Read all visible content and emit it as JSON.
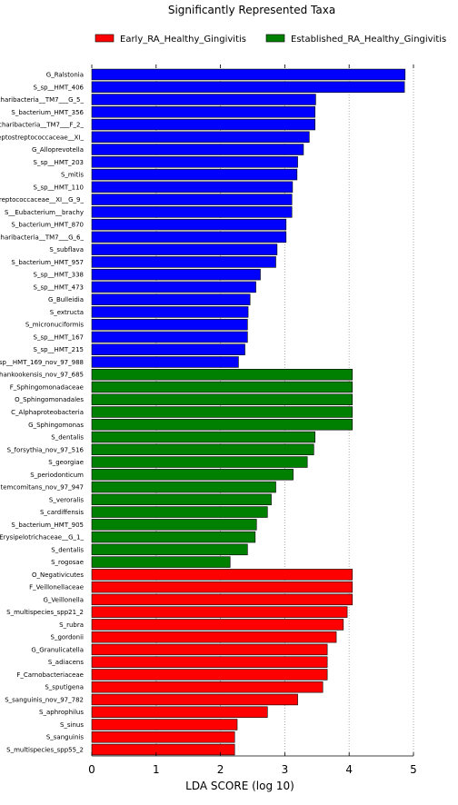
{
  "chart_data": {
    "type": "bar",
    "orientation": "horizontal",
    "title": "Significantly Represented Taxa",
    "xlabel": "LDA SCORE (log 10)",
    "ylabel": "",
    "xlim": [
      0,
      5
    ],
    "xticks": [
      0,
      1,
      2,
      3,
      4,
      5
    ],
    "grid": "vertical dotted",
    "legend_position": "top",
    "legend": [
      {
        "name": "Early_RA_Healthy_Gingivitis",
        "color": "#ff0000"
      },
      {
        "name": "Established_RA_Healthy_Gingivitis",
        "color": "#008000"
      }
    ],
    "bars": [
      {
        "label": "G_Ralstonia",
        "value": 4.87,
        "color": "#0000ff"
      },
      {
        "label": "S_sp__HMT_406",
        "value": 4.86,
        "color": "#0000ff"
      },
      {
        "label": "charibacteria__TM7___G_5_",
        "value": 3.48,
        "color": "#0000ff"
      },
      {
        "label": "S_bacterium_HMT_356",
        "value": 3.47,
        "color": "#0000ff"
      },
      {
        "label": "charibacteria__TM7___F_2_",
        "value": 3.47,
        "color": "#0000ff"
      },
      {
        "label": "eptostreptococcaceae__XI_",
        "value": 3.38,
        "color": "#0000ff"
      },
      {
        "label": "G_Alloprevotella",
        "value": 3.29,
        "color": "#0000ff"
      },
      {
        "label": "S_sp__HMT_203",
        "value": 3.2,
        "color": "#0000ff"
      },
      {
        "label": "S_mitis",
        "value": 3.19,
        "color": "#0000ff"
      },
      {
        "label": "S_sp__HMT_110",
        "value": 3.12,
        "color": "#0000ff"
      },
      {
        "label": "reptococcaceae__XI__G_9_",
        "value": 3.11,
        "color": "#0000ff"
      },
      {
        "label": "S__Eubacterium__brachy",
        "value": 3.11,
        "color": "#0000ff"
      },
      {
        "label": "S_bacterium_HMT_870",
        "value": 3.02,
        "color": "#0000ff"
      },
      {
        "label": "charibacteria__TM7___G_6_",
        "value": 3.02,
        "color": "#0000ff"
      },
      {
        "label": "S_subflava",
        "value": 2.88,
        "color": "#0000ff"
      },
      {
        "label": "S_bacterium_HMT_957",
        "value": 2.86,
        "color": "#0000ff"
      },
      {
        "label": "S_sp__HMT_338",
        "value": 2.62,
        "color": "#0000ff"
      },
      {
        "label": "S_sp__HMT_473",
        "value": 2.55,
        "color": "#0000ff"
      },
      {
        "label": "G_Bulleidia",
        "value": 2.46,
        "color": "#0000ff"
      },
      {
        "label": "S_extructa",
        "value": 2.43,
        "color": "#0000ff"
      },
      {
        "label": "S_micronuciformis",
        "value": 2.42,
        "color": "#0000ff"
      },
      {
        "label": "S_sp__HMT_167",
        "value": 2.42,
        "color": "#0000ff"
      },
      {
        "label": "S_sp__HMT_215",
        "value": 2.38,
        "color": "#0000ff"
      },
      {
        "label": "sp__HMT_169_nov_97_988",
        "value": 2.28,
        "color": "#0000ff"
      },
      {
        "label": "hankookensis_nov_97_685",
        "value": 4.05,
        "color": "#008000"
      },
      {
        "label": "F_Sphingomonadaceae",
        "value": 4.05,
        "color": "#008000"
      },
      {
        "label": "O_Sphingomonadales",
        "value": 4.05,
        "color": "#008000"
      },
      {
        "label": "C_Alphaproteobacteria",
        "value": 4.05,
        "color": "#008000"
      },
      {
        "label": "G_Sphingomonas",
        "value": 4.05,
        "color": "#008000"
      },
      {
        "label": "S_dentalis",
        "value": 3.47,
        "color": "#008000"
      },
      {
        "label": "S_forsythia_nov_97_516",
        "value": 3.45,
        "color": "#008000"
      },
      {
        "label": "S_georgiae",
        "value": 3.35,
        "color": "#008000"
      },
      {
        "label": "S_periodonticum",
        "value": 3.13,
        "color": "#008000"
      },
      {
        "label": "temcomitans_nov_97_947",
        "value": 2.86,
        "color": "#008000"
      },
      {
        "label": "S_veroralis",
        "value": 2.79,
        "color": "#008000"
      },
      {
        "label": "S_cardiffensis",
        "value": 2.73,
        "color": "#008000"
      },
      {
        "label": "S_bacterium_HMT_905",
        "value": 2.56,
        "color": "#008000"
      },
      {
        "label": "Erysipelotrichaceae__G_1_",
        "value": 2.54,
        "color": "#008000"
      },
      {
        "label": "S_dentalis",
        "value": 2.42,
        "color": "#008000"
      },
      {
        "label": "S_rogosae",
        "value": 2.15,
        "color": "#008000"
      },
      {
        "label": "O_Negativicutes",
        "value": 4.05,
        "color": "#ff0000"
      },
      {
        "label": "F_Veillonellaceae",
        "value": 4.05,
        "color": "#ff0000"
      },
      {
        "label": "G_Veillonella",
        "value": 4.05,
        "color": "#ff0000"
      },
      {
        "label": "S_multispecies_spp21_2",
        "value": 3.97,
        "color": "#ff0000"
      },
      {
        "label": "S_rubra",
        "value": 3.91,
        "color": "#ff0000"
      },
      {
        "label": "S_gordonii",
        "value": 3.8,
        "color": "#ff0000"
      },
      {
        "label": "G_Granulicatella",
        "value": 3.66,
        "color": "#ff0000"
      },
      {
        "label": "S_adiacens",
        "value": 3.66,
        "color": "#ff0000"
      },
      {
        "label": "F_Carnobacteriaceae",
        "value": 3.66,
        "color": "#ff0000"
      },
      {
        "label": "S_sputigena",
        "value": 3.59,
        "color": "#ff0000"
      },
      {
        "label": "S_sanguinis_nov_97_782",
        "value": 3.2,
        "color": "#ff0000"
      },
      {
        "label": "S_aphrophilus",
        "value": 2.73,
        "color": "#ff0000"
      },
      {
        "label": "S_sinus",
        "value": 2.26,
        "color": "#ff0000"
      },
      {
        "label": "S_sanguinis",
        "value": 2.22,
        "color": "#ff0000"
      },
      {
        "label": "S_multispecies_spp55_2",
        "value": 2.22,
        "color": "#ff0000"
      }
    ]
  }
}
